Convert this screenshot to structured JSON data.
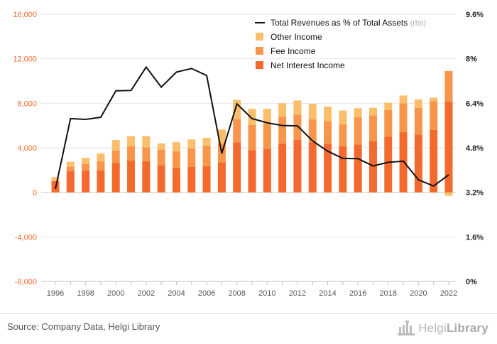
{
  "chart_data": {
    "type": "bar",
    "stacked": true,
    "categories": [
      "1996",
      "1997",
      "1998",
      "1999",
      "2000",
      "2001",
      "2002",
      "2003",
      "2004",
      "2005",
      "2006",
      "2007",
      "2008",
      "2009",
      "2010",
      "2011",
      "2012",
      "2013",
      "2014",
      "2015",
      "2016",
      "2017",
      "2018",
      "2019",
      "2020",
      "2021",
      "2022"
    ],
    "x_tick_labels": [
      "1996",
      "1998",
      "2000",
      "2002",
      "2004",
      "2006",
      "2008",
      "2010",
      "2012",
      "2014",
      "2016",
      "2018",
      "2020",
      "2022"
    ],
    "series": [
      {
        "name": "Net Interest Income",
        "color": "#f26a2e",
        "values": [
          1000,
          1900,
          1950,
          2000,
          2650,
          2850,
          2800,
          2450,
          2200,
          2300,
          2350,
          2700,
          4500,
          3800,
          3900,
          4400,
          4700,
          4500,
          4400,
          4150,
          4300,
          4600,
          5000,
          5400,
          5200,
          5600,
          8150
        ]
      },
      {
        "name": "Fee Income",
        "color": "#f7964a",
        "values": [
          0,
          400,
          600,
          800,
          1100,
          1300,
          1250,
          1400,
          1500,
          1650,
          1850,
          1650,
          2100,
          2250,
          2300,
          2400,
          2250,
          2050,
          2000,
          1950,
          2450,
          2300,
          2400,
          2600,
          2400,
          2600,
          2750
        ]
      },
      {
        "name": "Other Income",
        "color": "#fbbe6c",
        "values": [
          350,
          450,
          550,
          700,
          950,
          900,
          1000,
          550,
          800,
          800,
          700,
          1300,
          1700,
          1450,
          1300,
          1200,
          1300,
          1400,
          1300,
          1250,
          800,
          700,
          650,
          700,
          750,
          300,
          -300
        ]
      }
    ],
    "line_series": {
      "name": "Total Revenues as % of Total Assets",
      "suffix": "(rhs)",
      "color": "#111111",
      "values": [
        3.32,
        5.85,
        5.82,
        5.9,
        6.85,
        6.86,
        7.7,
        6.98,
        7.52,
        7.65,
        7.4,
        4.6,
        6.38,
        5.85,
        5.7,
        5.6,
        5.59,
        5.05,
        4.68,
        4.42,
        4.41,
        4.15,
        4.28,
        4.32,
        3.65,
        3.43,
        3.83
      ]
    },
    "y_left": {
      "min": -8000,
      "max": 16000,
      "ticks": [
        -8000,
        -4000,
        0,
        4000,
        8000,
        12000,
        16000
      ],
      "tick_labels": [
        "-8,000",
        "-4,000",
        "0",
        "4,000",
        "8,000",
        "12,000",
        "16,000"
      ],
      "color": "#f26a2e"
    },
    "y_right": {
      "min": 0,
      "max": 9.6,
      "ticks": [
        0,
        1.6,
        3.2,
        4.8,
        6.4,
        8,
        9.6
      ],
      "tick_labels": [
        "0%",
        "1.6%",
        "3.2%",
        "4.8%",
        "6.4%",
        "8%",
        "9.6%"
      ]
    },
    "grid": true,
    "legend_position": "top-right"
  },
  "footer": {
    "source": "Source: Company Data, Helgi Library",
    "logo_text_light": "Helgi",
    "logo_text_bold": "Library",
    "logo_icon": "building-icon"
  }
}
